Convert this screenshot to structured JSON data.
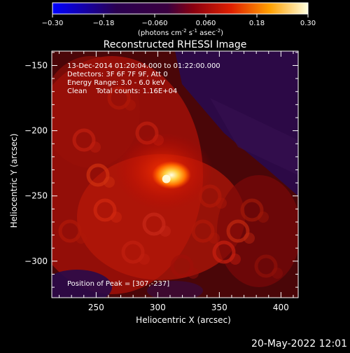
{
  "chart_data": {
    "type": "heatmap",
    "title": "Reconstructed RHESSI Image",
    "xlabel": "Heliocentric X (arcsec)",
    "ylabel": "Heliocentric Y (arcsec)",
    "xlim": [
      214,
      414
    ],
    "ylim": [
      -328,
      -139
    ],
    "xticks": [
      250,
      300,
      350,
      400
    ],
    "yticks": [
      -150,
      -200,
      -250,
      -300
    ],
    "colorbar": {
      "range": [
        -0.3,
        0.3
      ],
      "tick_values": [
        -0.3,
        -0.18,
        -0.06,
        0.06,
        0.18,
        0.3
      ],
      "tick_labels": [
        "-0.30",
        "-0.18",
        "-0.060",
        "0.060",
        "0.18",
        "0.30"
      ],
      "units_prefix": "(photons cm",
      "units_exp1": "-2",
      "units_mid": " s",
      "units_exp2": "-1",
      "units_mid2": " asec",
      "units_exp3": "-2",
      "units_suffix": ")"
    },
    "peak": {
      "x": 307,
      "y": -237,
      "value": 0.3
    },
    "info_lines": [
      "13-Dec-2014 01:20:04.000 to 01:22:00.000",
      "Detectors: 3F 6F 7F 9F, Att 0",
      "Energy Range: 3.0 - 6.0 keV",
      "Clean    Total counts: 1.16E+04"
    ],
    "peak_label": "Position of Peak = [307,-237]"
  },
  "footer": {
    "timestamp": "20-May-2022 12:01"
  }
}
